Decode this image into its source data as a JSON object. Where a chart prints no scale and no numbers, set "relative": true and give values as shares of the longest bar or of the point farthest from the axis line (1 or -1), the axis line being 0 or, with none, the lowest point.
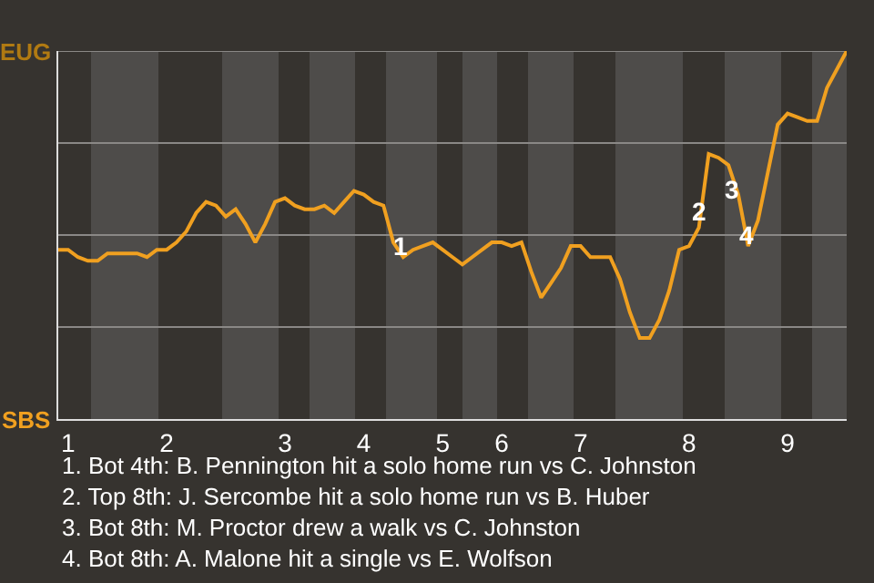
{
  "chart_data": {
    "type": "line",
    "categories": [
      null,
      "1",
      null,
      null,
      null,
      null,
      null,
      null,
      null,
      null,
      null,
      "2",
      null,
      null,
      null,
      null,
      null,
      null,
      null,
      null,
      null,
      null,
      null,
      "3",
      null,
      null,
      null,
      null,
      null,
      null,
      null,
      "4",
      null,
      null,
      null,
      null,
      null,
      null,
      null,
      "5",
      null,
      null,
      null,
      null,
      null,
      "6",
      null,
      null,
      null,
      null,
      null,
      null,
      null,
      "7",
      null,
      null,
      null,
      null,
      null,
      null,
      null,
      null,
      null,
      null,
      "8",
      null,
      null,
      null,
      null,
      null,
      null,
      null,
      null,
      null,
      "9",
      null,
      null,
      null,
      null,
      null,
      null
    ],
    "relative": true,
    "series": [
      {
        "color": "#f0a020",
        "values": [
          0.46,
          0.46,
          0.44,
          0.43,
          0.43,
          0.45,
          0.45,
          0.45,
          0.45,
          0.44,
          0.46,
          0.46,
          0.48,
          0.51,
          0.56,
          0.59,
          0.58,
          0.55,
          0.57,
          0.53,
          0.48,
          0.53,
          0.59,
          0.6,
          0.58,
          0.57,
          0.57,
          0.58,
          0.56,
          0.59,
          0.62,
          0.61,
          0.59,
          0.58,
          0.48,
          0.44,
          0.46,
          0.47,
          0.48,
          0.46,
          0.44,
          0.42,
          0.44,
          0.46,
          0.48,
          0.48,
          0.47,
          0.48,
          0.4,
          0.33,
          0.37,
          0.41,
          0.47,
          0.47,
          0.44,
          0.44,
          0.44,
          0.38,
          0.29,
          0.22,
          0.22,
          0.27,
          0.35,
          0.46,
          0.47,
          0.52,
          0.72,
          0.71,
          0.69,
          0.61,
          0.47,
          0.54,
          0.67,
          0.8,
          0.83,
          0.82,
          0.81,
          0.81,
          0.9,
          0.95,
          1.0
        ]
      }
    ],
    "grid": "y",
    "marker": "none",
    "annotations": [
      "EUG",
      "SBS",
      "1",
      "2",
      "3",
      "4",
      "1. Bot 4th: B. Pennington hit a solo home run vs C. Johnston",
      "2. Top 8th: J. Sercombe hit a solo home run vs B. Huber",
      "3. Bot 8th: M. Proctor drew a walk vs C. Johnston",
      "4. Bot 8th: A. Malone hit a single vs E. Wolfson"
    ]
  }
}
